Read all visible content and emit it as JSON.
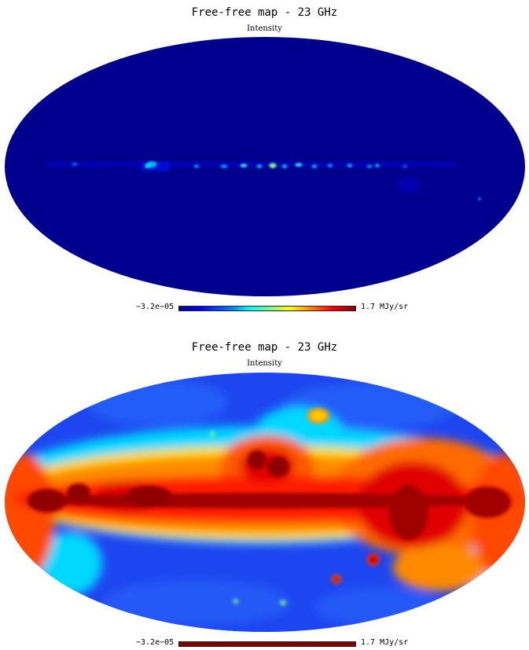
{
  "panels": [
    {
      "title": "Free-free map - 23 GHz",
      "subtitle": "Intensity",
      "colorbar": {
        "min_label": "−3.2e−05",
        "max_label": "1.7 MJy/sr",
        "scale": "linear"
      },
      "base_color": "#00008f"
    },
    {
      "title": "Free-free map - 23 GHz",
      "subtitle": "Intensity",
      "colorbar": {
        "min_label": "−3.2e−05",
        "max_label": "1.7 MJy/sr",
        "scale": "histogram-equalized"
      },
      "base_color": "#1e46f0"
    }
  ],
  "colormap": [
    "#00008f",
    "#0000ff",
    "#0080ff",
    "#00ffff",
    "#80ff80",
    "#ffff00",
    "#ff8000",
    "#ff0000",
    "#800000"
  ]
}
